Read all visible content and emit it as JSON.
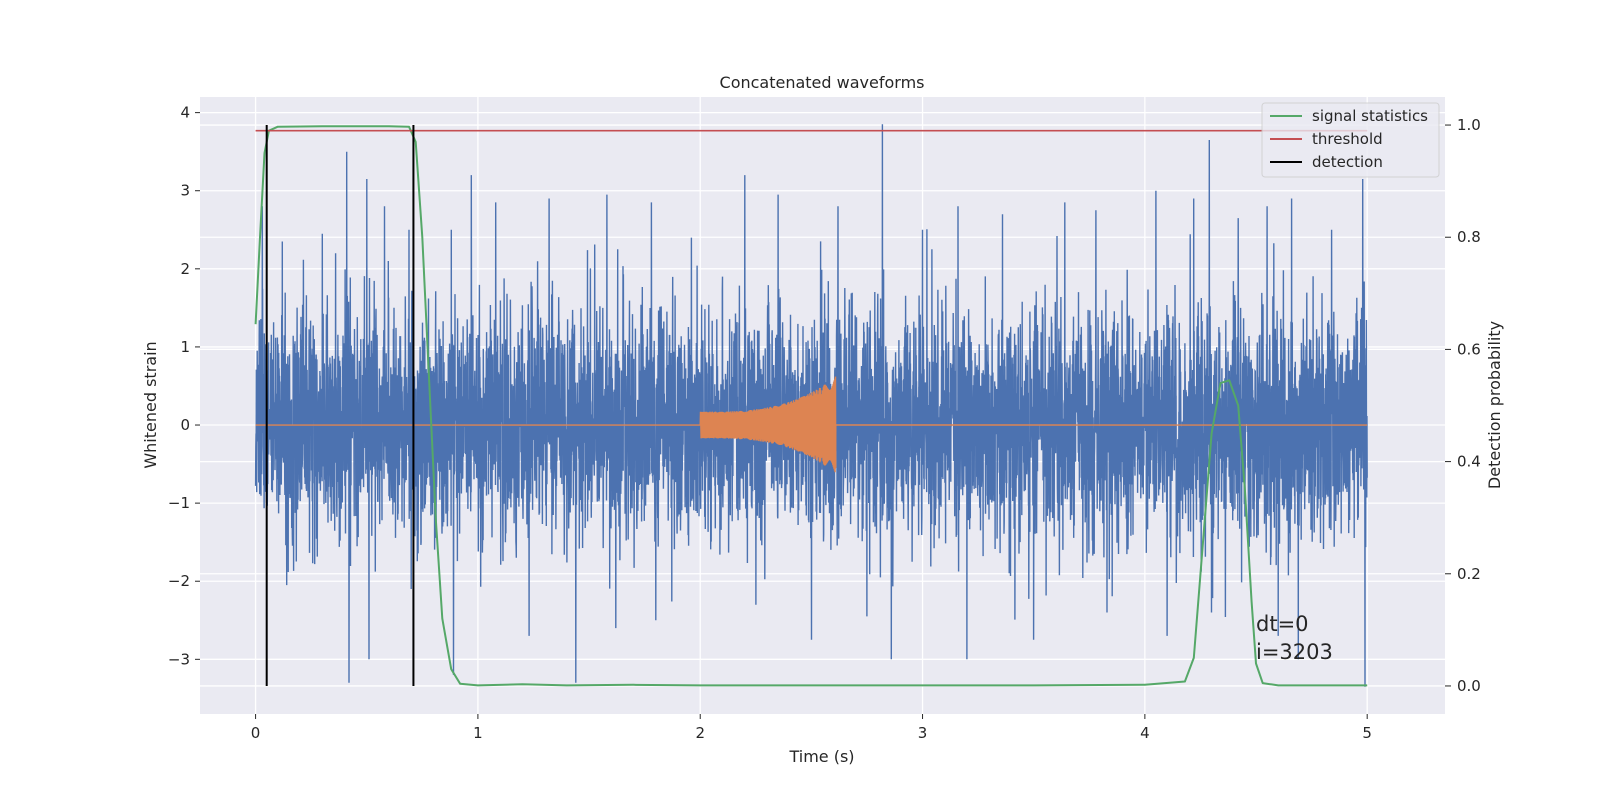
{
  "chart_data": {
    "type": "line",
    "title": "Concatenated waveforms",
    "xlabel": "Time (s)",
    "ylabel": "Whitened strain",
    "ylabel_right": "Detection probability",
    "xlim": [
      -0.25,
      5.35
    ],
    "ylim": [
      -3.7,
      4.2
    ],
    "ylim_right": [
      -0.05,
      1.05
    ],
    "xticks": [
      0,
      1,
      2,
      3,
      4,
      5
    ],
    "yticks": [
      -3,
      -2,
      -1,
      0,
      1,
      2,
      3,
      4
    ],
    "yticks_right": [
      0.0,
      0.2,
      0.4,
      0.6,
      0.8,
      1.0
    ],
    "ytick_labels": [
      "−3",
      "−2",
      "−1",
      "0",
      "1",
      "2",
      "3",
      "4"
    ],
    "yticks_right_labels": [
      "0.0",
      "0.2",
      "0.4",
      "0.6",
      "0.8",
      "1.0"
    ],
    "grid": true,
    "background": "#eaeaf2",
    "legend_position": "top-right",
    "series": [
      {
        "name": "",
        "kind": "noise",
        "axis": "left",
        "color": "#4c72b0",
        "x_range": [
          0,
          5
        ],
        "typical_amplitude": [
          -1.6,
          1.6
        ],
        "envelope_max": 3.85,
        "envelope_min": -3.3,
        "spikes": [
          {
            "x": 0.03,
            "y": 2.8
          },
          {
            "x": 0.12,
            "y": 2.35
          },
          {
            "x": 0.14,
            "y": -2.05
          },
          {
            "x": 0.3,
            "y": 2.45
          },
          {
            "x": 0.36,
            "y": 2.2
          },
          {
            "x": 0.41,
            "y": 3.5
          },
          {
            "x": 0.42,
            "y": -3.3
          },
          {
            "x": 0.5,
            "y": 3.15
          },
          {
            "x": 0.51,
            "y": -3.0
          },
          {
            "x": 0.58,
            "y": 2.8
          },
          {
            "x": 0.69,
            "y": 2.5
          },
          {
            "x": 0.7,
            "y": -2.1
          },
          {
            "x": 0.88,
            "y": 2.5
          },
          {
            "x": 0.89,
            "y": -3.2
          },
          {
            "x": 0.97,
            "y": 3.2
          },
          {
            "x": 1.08,
            "y": 2.85
          },
          {
            "x": 1.23,
            "y": -2.7
          },
          {
            "x": 1.32,
            "y": 2.9
          },
          {
            "x": 1.44,
            "y": -3.3
          },
          {
            "x": 1.58,
            "y": 2.95
          },
          {
            "x": 1.62,
            "y": -2.6
          },
          {
            "x": 1.78,
            "y": 2.85
          },
          {
            "x": 1.8,
            "y": -2.5
          },
          {
            "x": 1.96,
            "y": 2.4
          },
          {
            "x": 2.2,
            "y": 3.2
          },
          {
            "x": 2.25,
            "y": -2.3
          },
          {
            "x": 2.35,
            "y": 2.95
          },
          {
            "x": 2.5,
            "y": -2.75
          },
          {
            "x": 2.62,
            "y": 2.8
          },
          {
            "x": 2.75,
            "y": -2.45
          },
          {
            "x": 2.82,
            "y": 3.85
          },
          {
            "x": 2.86,
            "y": -3.0
          },
          {
            "x": 3.0,
            "y": 2.5
          },
          {
            "x": 3.16,
            "y": 2.8
          },
          {
            "x": 3.2,
            "y": -3.0
          },
          {
            "x": 3.36,
            "y": 2.7
          },
          {
            "x": 3.5,
            "y": -2.75
          },
          {
            "x": 3.64,
            "y": 2.85
          },
          {
            "x": 3.78,
            "y": 2.75
          },
          {
            "x": 3.83,
            "y": -2.4
          },
          {
            "x": 4.05,
            "y": 3.0
          },
          {
            "x": 4.1,
            "y": -2.7
          },
          {
            "x": 4.22,
            "y": 2.9
          },
          {
            "x": 4.29,
            "y": 3.65
          },
          {
            "x": 4.3,
            "y": -2.4
          },
          {
            "x": 4.42,
            "y": 2.65
          },
          {
            "x": 4.55,
            "y": 2.8
          },
          {
            "x": 4.6,
            "y": -2.7
          },
          {
            "x": 4.66,
            "y": 2.9
          },
          {
            "x": 4.69,
            "y": -3.0
          },
          {
            "x": 4.84,
            "y": 2.5
          },
          {
            "x": 4.98,
            "y": 3.15
          },
          {
            "x": 4.99,
            "y": -3.35
          }
        ]
      },
      {
        "name": "",
        "kind": "chirp",
        "axis": "left",
        "color": "#dd8452",
        "x_range": [
          0,
          5
        ],
        "chirp_start": 2.0,
        "chirp_end": 2.61,
        "amplitude_start": 0.17,
        "amplitude_end": 0.62,
        "amplitude_end_negative": -0.55,
        "baseline": 0
      },
      {
        "name": "signal statistics",
        "axis": "right",
        "color": "#55a868",
        "points": [
          [
            0.0,
            0.645
          ],
          [
            0.02,
            0.8
          ],
          [
            0.04,
            0.95
          ],
          [
            0.06,
            0.99
          ],
          [
            0.1,
            0.997
          ],
          [
            0.3,
            0.998
          ],
          [
            0.6,
            0.998
          ],
          [
            0.69,
            0.997
          ],
          [
            0.72,
            0.97
          ],
          [
            0.75,
            0.8
          ],
          [
            0.78,
            0.55
          ],
          [
            0.81,
            0.3
          ],
          [
            0.84,
            0.12
          ],
          [
            0.88,
            0.03
          ],
          [
            0.92,
            0.004
          ],
          [
            1.0,
            0.001
          ],
          [
            1.2,
            0.003
          ],
          [
            1.4,
            0.001
          ],
          [
            1.7,
            0.002
          ],
          [
            2.0,
            0.001
          ],
          [
            3.0,
            0.001
          ],
          [
            3.5,
            0.001
          ],
          [
            4.0,
            0.002
          ],
          [
            4.18,
            0.008
          ],
          [
            4.22,
            0.05
          ],
          [
            4.26,
            0.25
          ],
          [
            4.3,
            0.45
          ],
          [
            4.34,
            0.54
          ],
          [
            4.38,
            0.545
          ],
          [
            4.42,
            0.5
          ],
          [
            4.45,
            0.35
          ],
          [
            4.48,
            0.15
          ],
          [
            4.5,
            0.04
          ],
          [
            4.53,
            0.005
          ],
          [
            4.6,
            0.001
          ],
          [
            5.0,
            0.001
          ]
        ]
      },
      {
        "name": "threshold",
        "axis": "right",
        "color": "#c44e52",
        "x_range": [
          0,
          5
        ],
        "value": 0.99
      },
      {
        "name": "detection",
        "axis": "right",
        "color": "#000000",
        "vlines": [
          0.05,
          0.71
        ],
        "ymin": 0.0,
        "ymax": 1.0
      }
    ],
    "annotations": [
      "dt=0",
      "i=3203"
    ]
  }
}
